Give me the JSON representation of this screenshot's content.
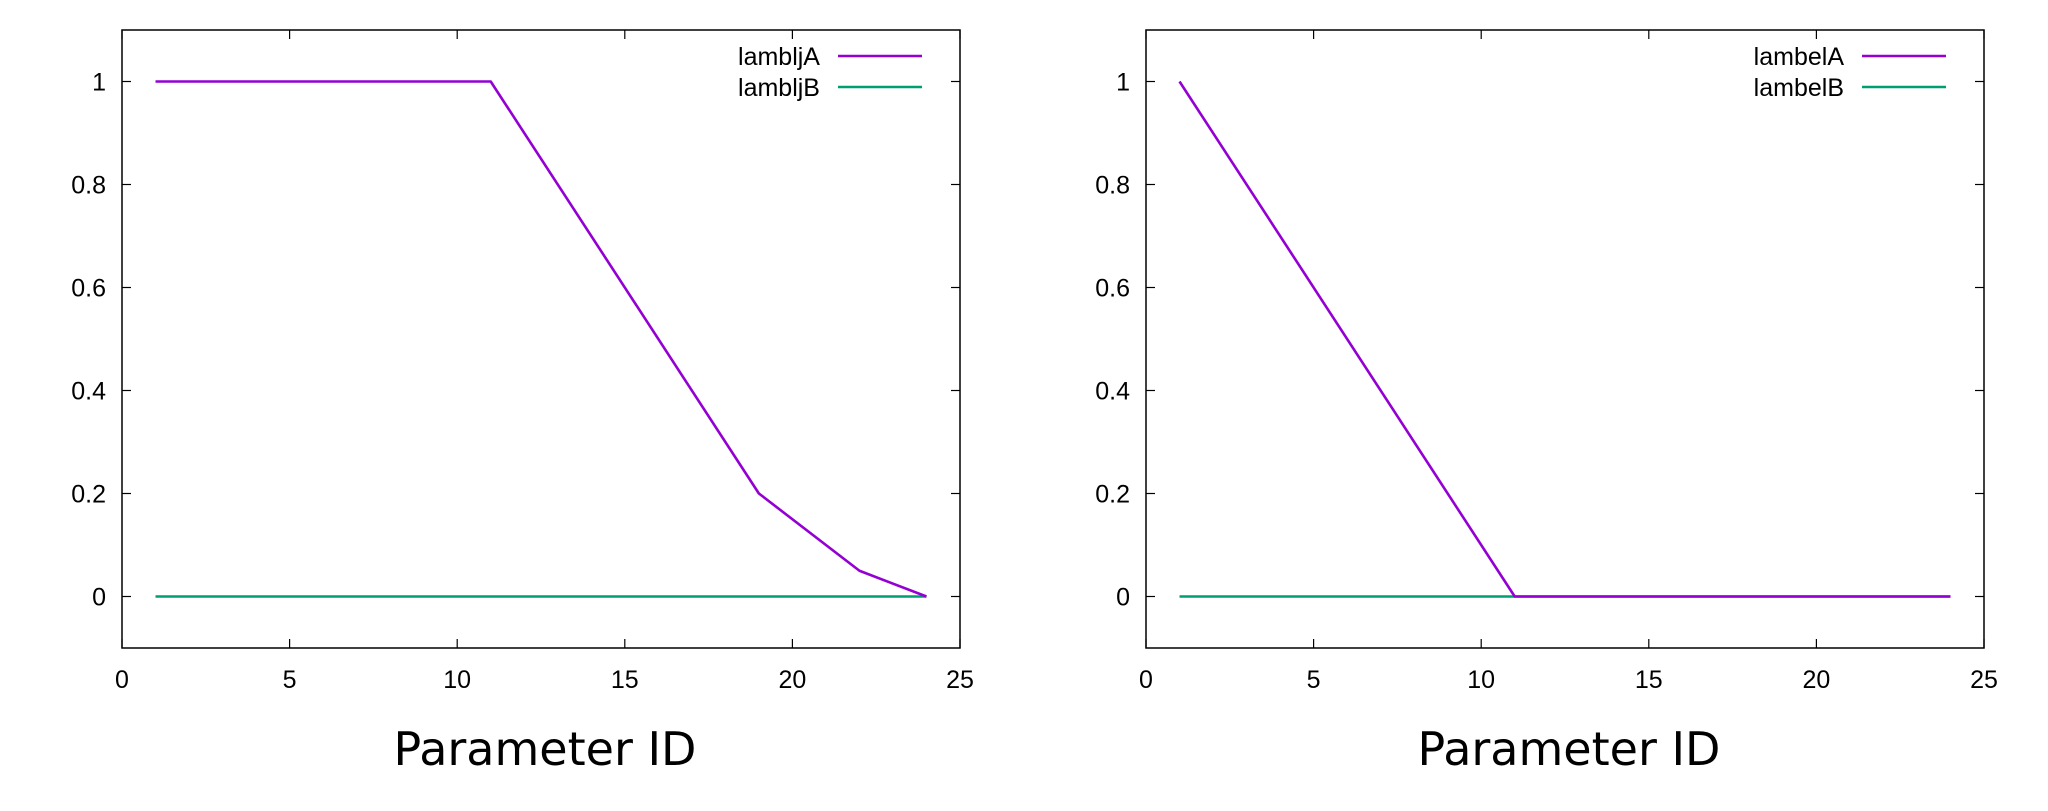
{
  "chart_data": [
    {
      "type": "line",
      "title": "",
      "xlabel": "Parameter ID",
      "ylabel": "",
      "xlim": [
        0,
        25
      ],
      "ylim": [
        -0.1,
        1.1
      ],
      "xticks": [
        0,
        5,
        10,
        15,
        20,
        25
      ],
      "yticks": [
        0,
        0.2,
        0.4,
        0.6,
        0.8,
        1
      ],
      "grid": false,
      "legend_position": "top-right",
      "series": [
        {
          "name": "lambljA",
          "color": "#9400d3",
          "x": [
            1,
            11,
            19,
            22,
            24
          ],
          "y": [
            1,
            1,
            0.2,
            0.05,
            0
          ]
        },
        {
          "name": "lambljB",
          "color": "#009e73",
          "x": [
            1,
            24
          ],
          "y": [
            0,
            0
          ]
        }
      ]
    },
    {
      "type": "line",
      "title": "",
      "xlabel": "Parameter ID",
      "ylabel": "",
      "xlim": [
        0,
        25
      ],
      "ylim": [
        -0.1,
        1.1
      ],
      "xticks": [
        0,
        5,
        10,
        15,
        20,
        25
      ],
      "yticks": [
        0,
        0.2,
        0.4,
        0.6,
        0.8,
        1
      ],
      "grid": false,
      "legend_position": "top-right",
      "series": [
        {
          "name": "lambelA",
          "color": "#9400d3",
          "x": [
            1,
            11,
            24
          ],
          "y": [
            1,
            0,
            0
          ]
        },
        {
          "name": "lambelB",
          "color": "#009e73",
          "x": [
            1,
            24
          ],
          "y": [
            0,
            0
          ]
        }
      ]
    }
  ]
}
